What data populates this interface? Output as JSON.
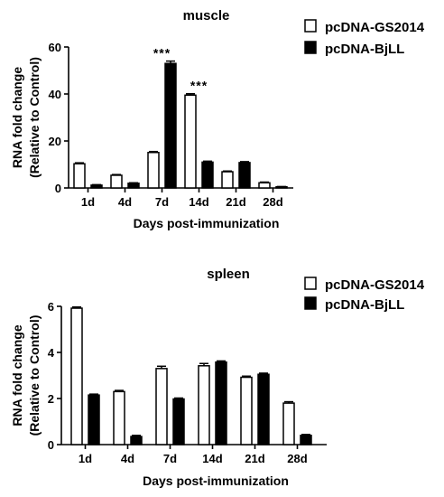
{
  "chart_data": [
    {
      "type": "bar",
      "title": "muscle",
      "xlabel": "Days post-immunization",
      "ylabel_line1": "RNA fold change",
      "ylabel_line2": "(Relative to Control)",
      "categories": [
        "1d",
        "4d",
        "7d",
        "14d",
        "21d",
        "28d"
      ],
      "ylim": [
        0,
        60
      ],
      "yticks": [
        0,
        20,
        40,
        60
      ],
      "series": [
        {
          "name": "pcDNA-GS2014",
          "fill": "#ffffff",
          "values": [
            10.3,
            5.4,
            15.1,
            39.5,
            6.9,
            2.2
          ],
          "errors": [
            0.4,
            0.3,
            0.4,
            0.6,
            0.3,
            0.3
          ]
        },
        {
          "name": "pcDNA-BjLL",
          "fill": "#000000",
          "values": [
            1.2,
            2.0,
            53.0,
            11.0,
            10.8,
            0.5
          ],
          "errors": [
            0.2,
            0.2,
            1.0,
            0.4,
            0.4,
            0.1
          ]
        }
      ],
      "annotations": [
        {
          "category": "7d",
          "text": "***"
        },
        {
          "category": "14d",
          "text": "***"
        }
      ],
      "legend_position": "top-right"
    },
    {
      "type": "bar",
      "title": "spleen",
      "xlabel": "Days post-immunization",
      "ylabel_line1": "RNA fold change",
      "ylabel_line2": "(Relative to Control)",
      "categories": [
        "1d",
        "4d",
        "7d",
        "14d",
        "21d",
        "28d"
      ],
      "ylim": [
        0,
        6
      ],
      "yticks": [
        0,
        2,
        4,
        6
      ],
      "series": [
        {
          "name": "pcDNA-GS2014",
          "fill": "#ffffff",
          "values": [
            5.92,
            2.3,
            3.3,
            3.42,
            2.92,
            1.8
          ],
          "errors": [
            0.05,
            0.05,
            0.1,
            0.1,
            0.05,
            0.06
          ]
        },
        {
          "name": "pcDNA-BjLL",
          "fill": "#000000",
          "values": [
            2.15,
            0.35,
            1.98,
            3.58,
            3.05,
            0.4
          ],
          "errors": [
            0.04,
            0.05,
            0.04,
            0.05,
            0.05,
            0.04
          ]
        }
      ],
      "annotations": [],
      "legend_position": "top-right"
    }
  ]
}
